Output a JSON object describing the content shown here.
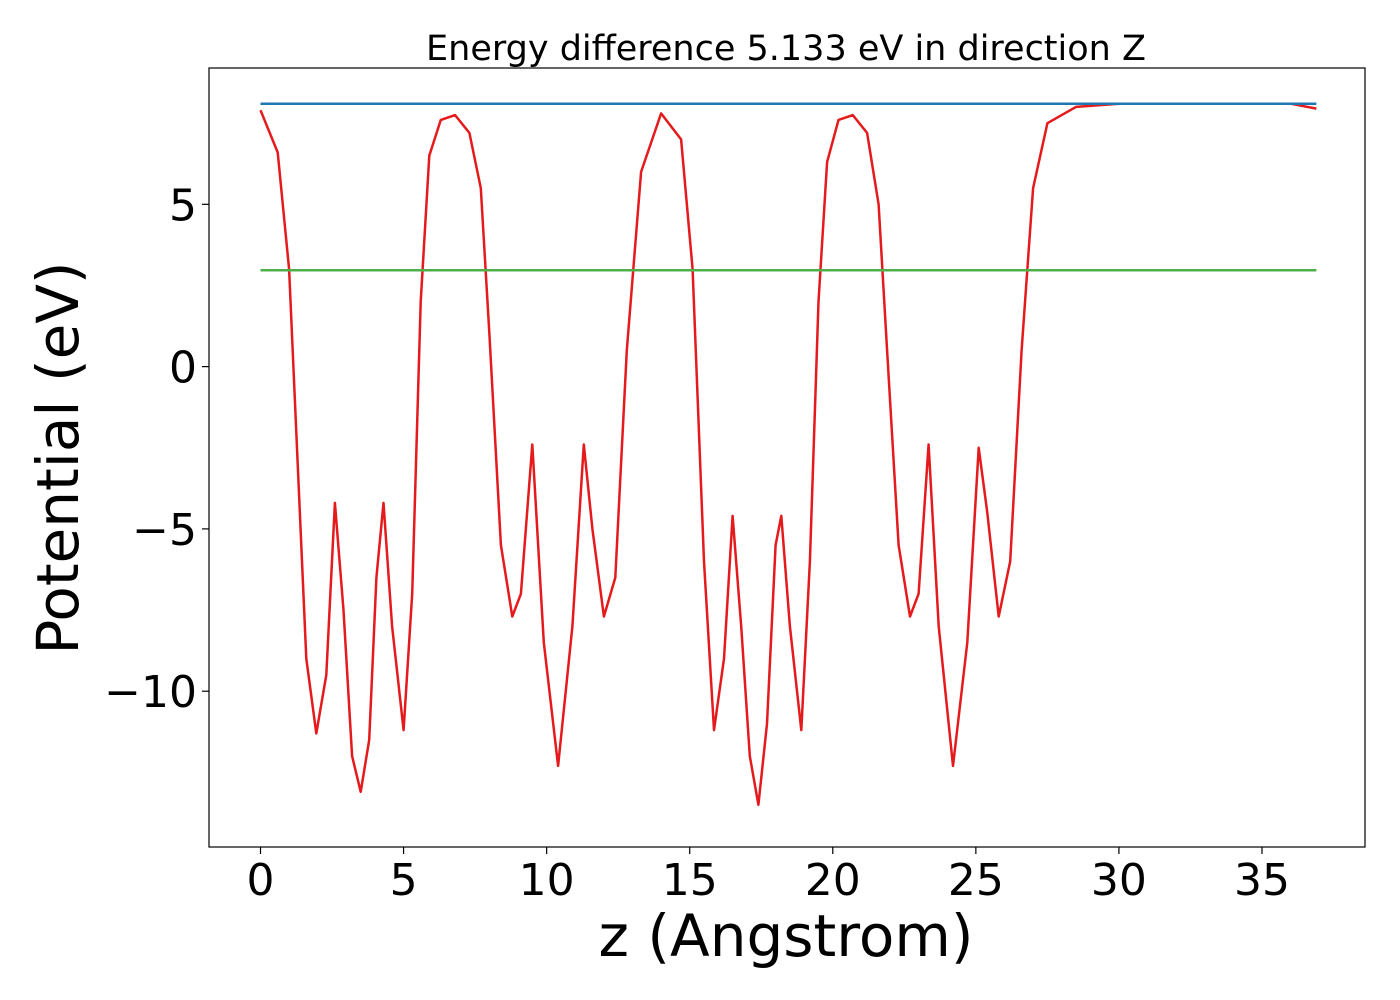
{
  "chart_data": {
    "type": "line",
    "title": "Energy difference 5.133 eV in direction Z",
    "xlabel": "z (Angstrom)",
    "ylabel": "Potential (eV)",
    "xlim": [
      -1.8,
      38.6
    ],
    "ylim": [
      -14.8,
      9.2
    ],
    "xticks": [
      0,
      5,
      10,
      15,
      20,
      25,
      30,
      35
    ],
    "xtick_labels": [
      "0",
      "5",
      "10",
      "15",
      "20",
      "25",
      "30",
      "35"
    ],
    "yticks": [
      5,
      0,
      -5,
      -10
    ],
    "ytick_labels": [
      "5",
      "0",
      "−5",
      "−10"
    ],
    "grid": false,
    "legend": "none",
    "series": [
      {
        "color": "#e41a1c",
        "x": [
          0.0,
          0.6,
          1.0,
          1.3,
          1.6,
          1.95,
          2.3,
          2.6,
          2.9,
          3.2,
          3.5,
          3.8,
          4.05,
          4.3,
          4.6,
          5.0,
          5.3,
          5.6,
          5.9,
          6.3,
          6.8,
          7.3,
          7.7,
          8.0,
          8.4,
          8.8,
          9.1,
          9.5,
          9.9,
          10.4,
          10.9,
          11.3,
          11.6,
          12.0,
          12.4,
          12.8,
          13.3,
          14.0,
          14.7,
          15.1,
          15.5,
          15.85,
          16.2,
          16.5,
          16.8,
          17.1,
          17.4,
          17.7,
          18.0,
          18.2,
          18.5,
          18.9,
          19.2,
          19.5,
          19.8,
          20.2,
          20.7,
          21.2,
          21.6,
          21.9,
          22.3,
          22.7,
          23.0,
          23.35,
          23.7,
          24.2,
          24.7,
          25.1,
          25.4,
          25.8,
          26.2,
          26.6,
          27.0,
          27.5,
          28.5,
          30.0,
          33.0,
          36.0,
          36.9
        ],
        "y": [
          7.9,
          6.6,
          3.0,
          -3.0,
          -9.0,
          -11.3,
          -9.5,
          -4.2,
          -7.5,
          -12.0,
          -13.1,
          -11.5,
          -6.5,
          -4.2,
          -8.0,
          -11.2,
          -7.0,
          2.0,
          6.5,
          7.6,
          7.75,
          7.2,
          5.5,
          1.0,
          -5.5,
          -7.7,
          -7.0,
          -2.4,
          -8.5,
          -12.3,
          -8.0,
          -2.4,
          -5.0,
          -7.7,
          -6.5,
          0.5,
          6.0,
          7.8,
          7.0,
          3.0,
          -6.0,
          -11.2,
          -9.0,
          -4.6,
          -8.0,
          -12.0,
          -13.5,
          -11.0,
          -5.5,
          -4.6,
          -8.0,
          -11.2,
          -6.0,
          2.0,
          6.3,
          7.6,
          7.75,
          7.2,
          5.0,
          0.5,
          -5.5,
          -7.7,
          -7.0,
          -2.4,
          -8.0,
          -12.3,
          -8.5,
          -2.5,
          -4.5,
          -7.7,
          -6.0,
          0.5,
          5.5,
          7.5,
          8.0,
          8.1,
          8.1,
          8.1,
          7.95
        ]
      },
      {
        "color": "#1f77b4",
        "x": [
          0.0,
          36.9
        ],
        "y": [
          8.1,
          8.1
        ]
      },
      {
        "color": "#4daf4a",
        "x": [
          0.0,
          36.9
        ],
        "y": [
          2.97,
          2.97
        ]
      }
    ]
  }
}
